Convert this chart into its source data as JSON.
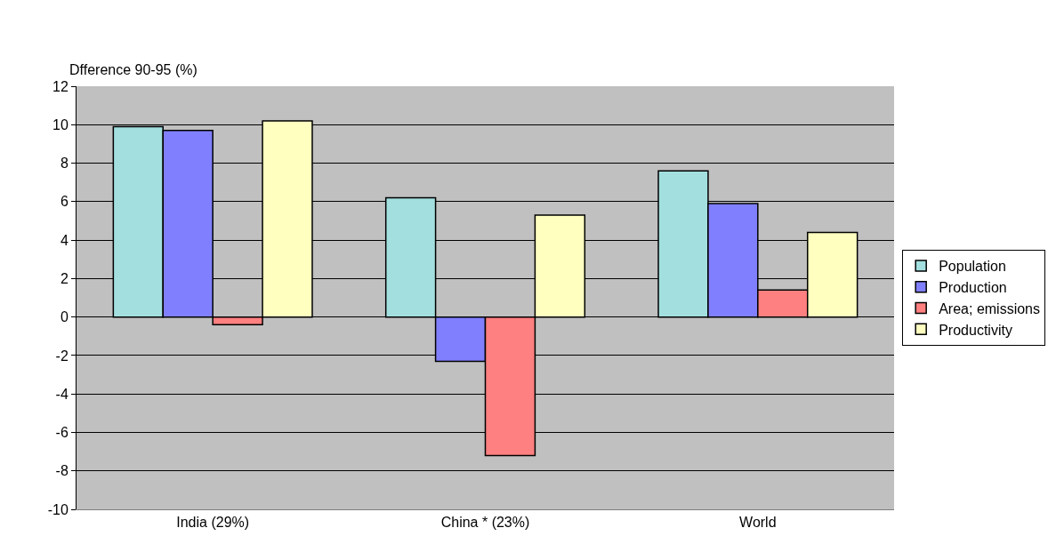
{
  "chart_data": {
    "type": "bar",
    "ylabel": "Dfference 90-95 (%)",
    "categories": [
      "India (29%)",
      "China * (23%)",
      "World"
    ],
    "series": [
      {
        "name": "Population",
        "color": "#a3dfdf",
        "values": [
          9.9,
          6.2,
          7.6
        ]
      },
      {
        "name": "Production",
        "color": "#8080ff",
        "values": [
          9.7,
          -2.3,
          5.9
        ]
      },
      {
        "name": "Area; emissions",
        "color": "#ff8080",
        "values": [
          -0.4,
          -7.2,
          1.4
        ]
      },
      {
        "name": "Productivity",
        "color": "#ffffc0",
        "values": [
          10.2,
          5.3,
          4.4
        ]
      }
    ],
    "ylim": [
      -10,
      12
    ],
    "yticks": [
      -10,
      -8,
      -6,
      -4,
      -2,
      0,
      2,
      4,
      6,
      8,
      10,
      12
    ],
    "grid": "y",
    "legend": "right"
  }
}
